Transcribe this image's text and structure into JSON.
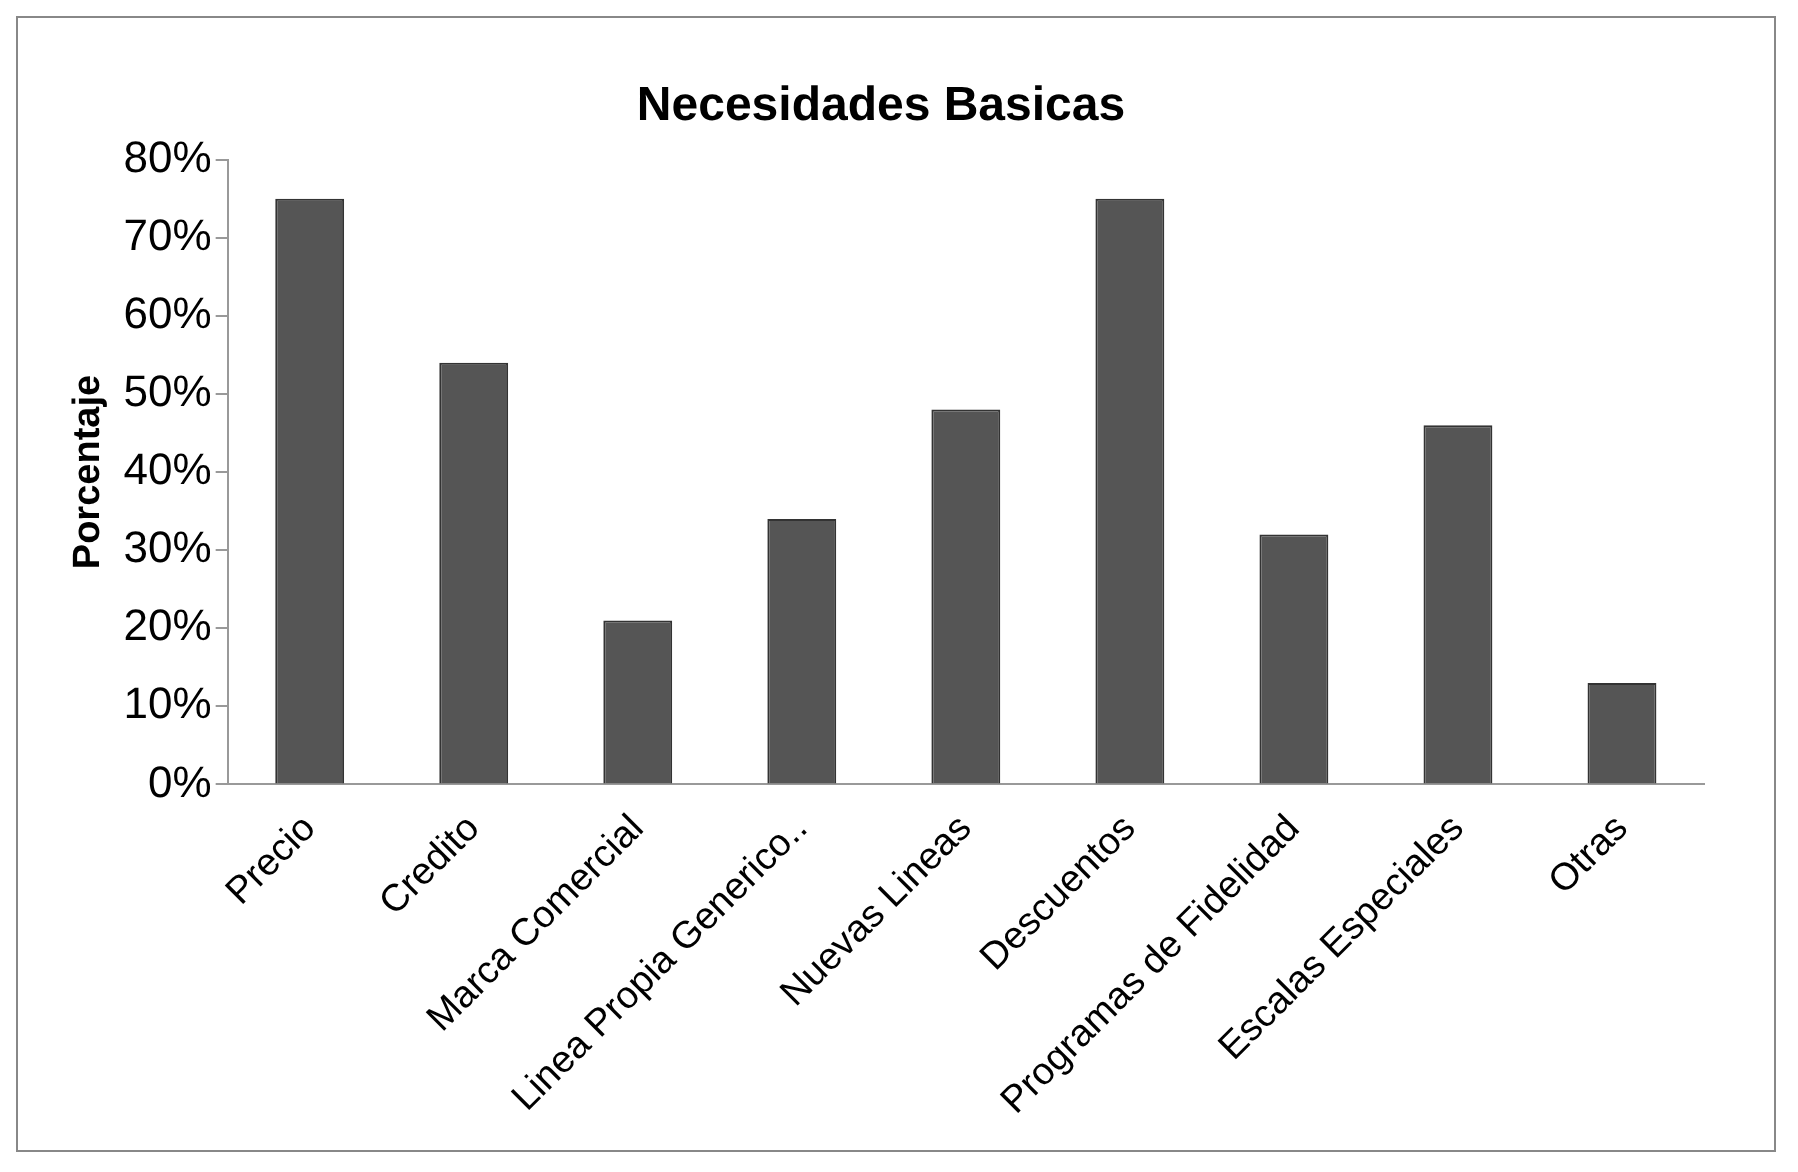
{
  "chart_data": {
    "type": "bar",
    "title": "Necesidades Basicas",
    "ylabel": "Porcentaje",
    "categories": [
      "Precio",
      "Credito",
      "Marca Comercial",
      "Linea Propia Generico..",
      "Nuevas Lineas",
      "Descuentos",
      "Programas de Fidelidad",
      "Escalas Especiales",
      "Otras"
    ],
    "values": [
      75,
      54,
      21,
      34,
      48,
      75,
      32,
      46,
      13
    ],
    "color": "#555555",
    "ylim": [
      0,
      80
    ],
    "yticks": [
      {
        "value": 0,
        "label": "0%"
      },
      {
        "value": 10,
        "label": "10%"
      },
      {
        "value": 20,
        "label": "20%"
      },
      {
        "value": 30,
        "label": "30%"
      },
      {
        "value": 40,
        "label": "40%"
      },
      {
        "value": 50,
        "label": "50%"
      },
      {
        "value": 60,
        "label": "60%"
      },
      {
        "value": 70,
        "label": "70%"
      },
      {
        "value": 80,
        "label": "80%"
      }
    ],
    "grid": false,
    "legend": false
  }
}
